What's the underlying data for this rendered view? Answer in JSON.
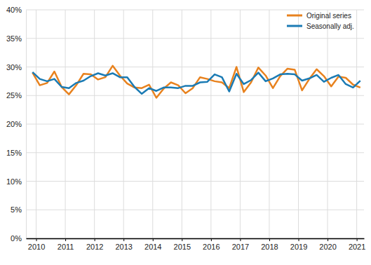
{
  "chart_data": {
    "type": "line",
    "x": [
      2009.875,
      2010.125,
      2010.375,
      2010.625,
      2010.875,
      2011.125,
      2011.375,
      2011.625,
      2011.875,
      2012.125,
      2012.375,
      2012.625,
      2012.875,
      2013.125,
      2013.375,
      2013.625,
      2013.875,
      2014.125,
      2014.375,
      2014.625,
      2014.875,
      2015.125,
      2015.375,
      2015.625,
      2015.875,
      2016.125,
      2016.375,
      2016.625,
      2016.875,
      2017.125,
      2017.375,
      2017.625,
      2017.875,
      2018.125,
      2018.375,
      2018.625,
      2018.875,
      2019.125,
      2019.375,
      2019.625,
      2019.875,
      2020.125,
      2020.375,
      2020.625,
      2020.875,
      2021.125
    ],
    "series": [
      {
        "name": "Original series",
        "color": "#e8821e",
        "values": [
          29.0,
          26.8,
          27.2,
          29.2,
          26.5,
          25.2,
          26.8,
          28.8,
          28.7,
          27.8,
          28.2,
          30.2,
          28.5,
          27.1,
          26.4,
          26.3,
          26.9,
          24.6,
          26.2,
          27.3,
          26.8,
          25.4,
          26.3,
          28.2,
          27.9,
          27.5,
          27.3,
          26.3,
          30.0,
          25.6,
          27.3,
          29.9,
          28.5,
          26.3,
          28.4,
          29.7,
          29.5,
          25.9,
          27.9,
          29.6,
          28.4,
          26.6,
          28.3,
          28.1,
          26.9,
          26.4
        ]
      },
      {
        "name": "Seasonally adj.",
        "color": "#1b7bb4",
        "values": [
          29.1,
          27.9,
          27.5,
          27.9,
          26.5,
          26.3,
          27.2,
          27.6,
          28.4,
          28.9,
          28.5,
          28.9,
          28.2,
          28.2,
          26.5,
          25.3,
          26.3,
          25.8,
          26.4,
          26.4,
          26.3,
          26.7,
          26.7,
          27.3,
          27.4,
          28.7,
          28.2,
          25.7,
          28.8,
          27.0,
          27.7,
          29.0,
          27.5,
          28.0,
          28.7,
          28.8,
          28.7,
          27.6,
          28.0,
          28.6,
          27.4,
          28.1,
          28.6,
          27.0,
          26.4,
          27.6
        ]
      }
    ],
    "xlim": [
      2009.65,
      2021.25
    ],
    "xticks": [
      2010,
      2011,
      2012,
      2013,
      2014,
      2015,
      2016,
      2017,
      2018,
      2019,
      2020,
      2021
    ],
    "ylim": [
      0,
      40
    ],
    "yticks": [
      {
        "value": 0,
        "label": "0%"
      },
      {
        "value": 5,
        "label": "5%"
      },
      {
        "value": 10,
        "label": "10%"
      },
      {
        "value": 15,
        "label": "15%"
      },
      {
        "value": 20,
        "label": "20%"
      },
      {
        "value": 25,
        "label": "25%"
      },
      {
        "value": 30,
        "label": "30%"
      },
      {
        "value": 35,
        "label": "35%"
      },
      {
        "value": 40,
        "label": "40%"
      }
    ],
    "grid": true,
    "legend": "top-right"
  }
}
